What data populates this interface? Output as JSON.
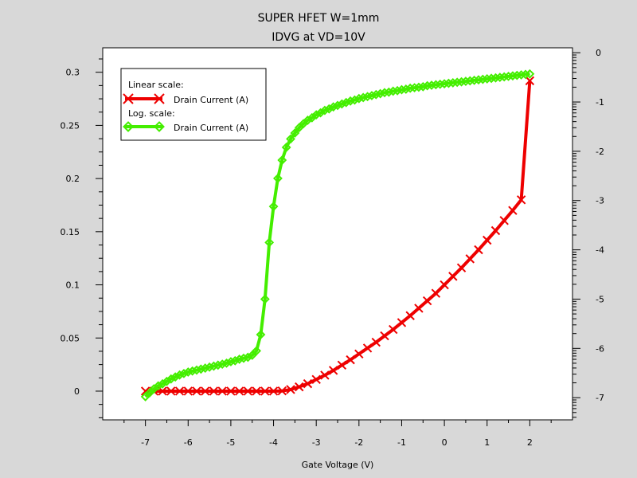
{
  "chart_data": {
    "type": "line",
    "title": "SUPER HFET W=1mm",
    "subtitle": "IDVG at VD=10V",
    "xlabel": "Gate Voltage (V)",
    "ylabel": "",
    "xlim": [
      -8,
      3
    ],
    "ylim": [
      -0.027,
      0.323
    ],
    "y2lim": [
      -7.45,
      0.1
    ],
    "xticks": [
      -7,
      -6,
      -5,
      -4,
      -3,
      -2,
      -1,
      0,
      1,
      2
    ],
    "yticks": [
      0,
      0.05,
      0.1,
      0.15,
      0.2,
      0.25,
      0.3
    ],
    "y2ticks": [
      0,
      -1,
      -2,
      -3,
      -4,
      -5,
      -6,
      -7
    ],
    "grid": false,
    "legend_position": "top-left",
    "legend": [
      {
        "heading": "Linear scale:",
        "label": "Drain Current (A)",
        "color": "#ee0000",
        "marker": "x"
      },
      {
        "heading": "Log. scale:",
        "label": "Drain Current (A)",
        "color": "#44ee00",
        "marker": "diamond"
      }
    ],
    "series": [
      {
        "axis": "left",
        "color": "#ee0000",
        "marker": "x",
        "x": [
          -7.0,
          -6.8,
          -6.6,
          -6.4,
          -6.2,
          -6.0,
          -5.8,
          -5.6,
          -5.4,
          -5.2,
          -5.0,
          -4.8,
          -4.6,
          -4.4,
          -4.2,
          -4.0,
          -3.8,
          -3.6,
          -3.4,
          -3.2,
          -3.0,
          -2.8,
          -2.6,
          -2.4,
          -2.2,
          -2.0,
          -1.8,
          -1.6,
          -1.4,
          -1.2,
          -1.0,
          -0.8,
          -0.6,
          -0.4,
          -0.2,
          0.0,
          0.2,
          0.4,
          0.6,
          0.8,
          1.0,
          1.2,
          1.4,
          1.6,
          1.8,
          2.0
        ],
        "values": [
          0,
          0,
          0,
          0,
          0,
          0,
          0,
          0,
          0,
          0,
          0,
          0,
          0,
          0,
          0,
          0,
          0.0002,
          0.0015,
          0.004,
          0.007,
          0.011,
          0.015,
          0.0195,
          0.0245,
          0.0295,
          0.035,
          0.0405,
          0.046,
          0.052,
          0.058,
          0.0645,
          0.071,
          0.078,
          0.085,
          0.092,
          0.1,
          0.108,
          0.116,
          0.1245,
          0.133,
          0.142,
          0.151,
          0.1605,
          0.17,
          0.18,
          0.292
        ]
      },
      {
        "axis": "right",
        "color": "#44ee00",
        "marker": "diamond",
        "x": [
          -7.0,
          -6.9,
          -6.8,
          -6.7,
          -6.6,
          -6.5,
          -6.4,
          -6.3,
          -6.2,
          -6.1,
          -6.0,
          -5.9,
          -5.8,
          -5.7,
          -5.6,
          -5.5,
          -5.4,
          -5.3,
          -5.2,
          -5.1,
          -5.0,
          -4.9,
          -4.8,
          -4.7,
          -4.6,
          -4.5,
          -4.4,
          -4.3,
          -4.2,
          -4.1,
          -4.0,
          -3.9,
          -3.8,
          -3.7,
          -3.6,
          -3.5,
          -3.4,
          -3.3,
          -3.2,
          -3.1,
          -3.0,
          -2.9,
          -2.8,
          -2.7,
          -2.6,
          -2.5,
          -2.4,
          -2.3,
          -2.2,
          -2.1,
          -2.0,
          -1.9,
          -1.8,
          -1.7,
          -1.6,
          -1.5,
          -1.4,
          -1.3,
          -1.2,
          -1.1,
          -1.0,
          -0.9,
          -0.8,
          -0.7,
          -0.6,
          -0.5,
          -0.4,
          -0.3,
          -0.2,
          -0.1,
          0.0,
          0.1,
          0.2,
          0.3,
          0.4,
          0.5,
          0.6,
          0.7,
          0.8,
          0.9,
          1.0,
          1.1,
          1.2,
          1.3,
          1.4,
          1.5,
          1.6,
          1.7,
          1.8,
          1.9,
          2.0
        ],
        "values": [
          -6.98,
          -6.9,
          -6.82,
          -6.76,
          -6.72,
          -6.67,
          -6.62,
          -6.58,
          -6.54,
          -6.51,
          -6.48,
          -6.46,
          -6.44,
          -6.42,
          -6.4,
          -6.38,
          -6.36,
          -6.34,
          -6.32,
          -6.3,
          -6.27,
          -6.25,
          -6.22,
          -6.2,
          -6.18,
          -6.14,
          -6.05,
          -5.72,
          -5.0,
          -3.85,
          -3.12,
          -2.55,
          -2.18,
          -1.92,
          -1.75,
          -1.63,
          -1.52,
          -1.44,
          -1.37,
          -1.32,
          -1.26,
          -1.22,
          -1.17,
          -1.14,
          -1.1,
          -1.07,
          -1.04,
          -1.01,
          -0.98,
          -0.96,
          -0.93,
          -0.91,
          -0.89,
          -0.87,
          -0.85,
          -0.83,
          -0.81,
          -0.8,
          -0.78,
          -0.77,
          -0.75,
          -0.74,
          -0.72,
          -0.71,
          -0.7,
          -0.69,
          -0.67,
          -0.66,
          -0.65,
          -0.64,
          -0.63,
          -0.62,
          -0.61,
          -0.6,
          -0.59,
          -0.58,
          -0.57,
          -0.56,
          -0.55,
          -0.54,
          -0.53,
          -0.52,
          -0.51,
          -0.5,
          -0.49,
          -0.48,
          -0.47,
          -0.46,
          -0.45,
          -0.44,
          -0.43
        ]
      }
    ]
  }
}
